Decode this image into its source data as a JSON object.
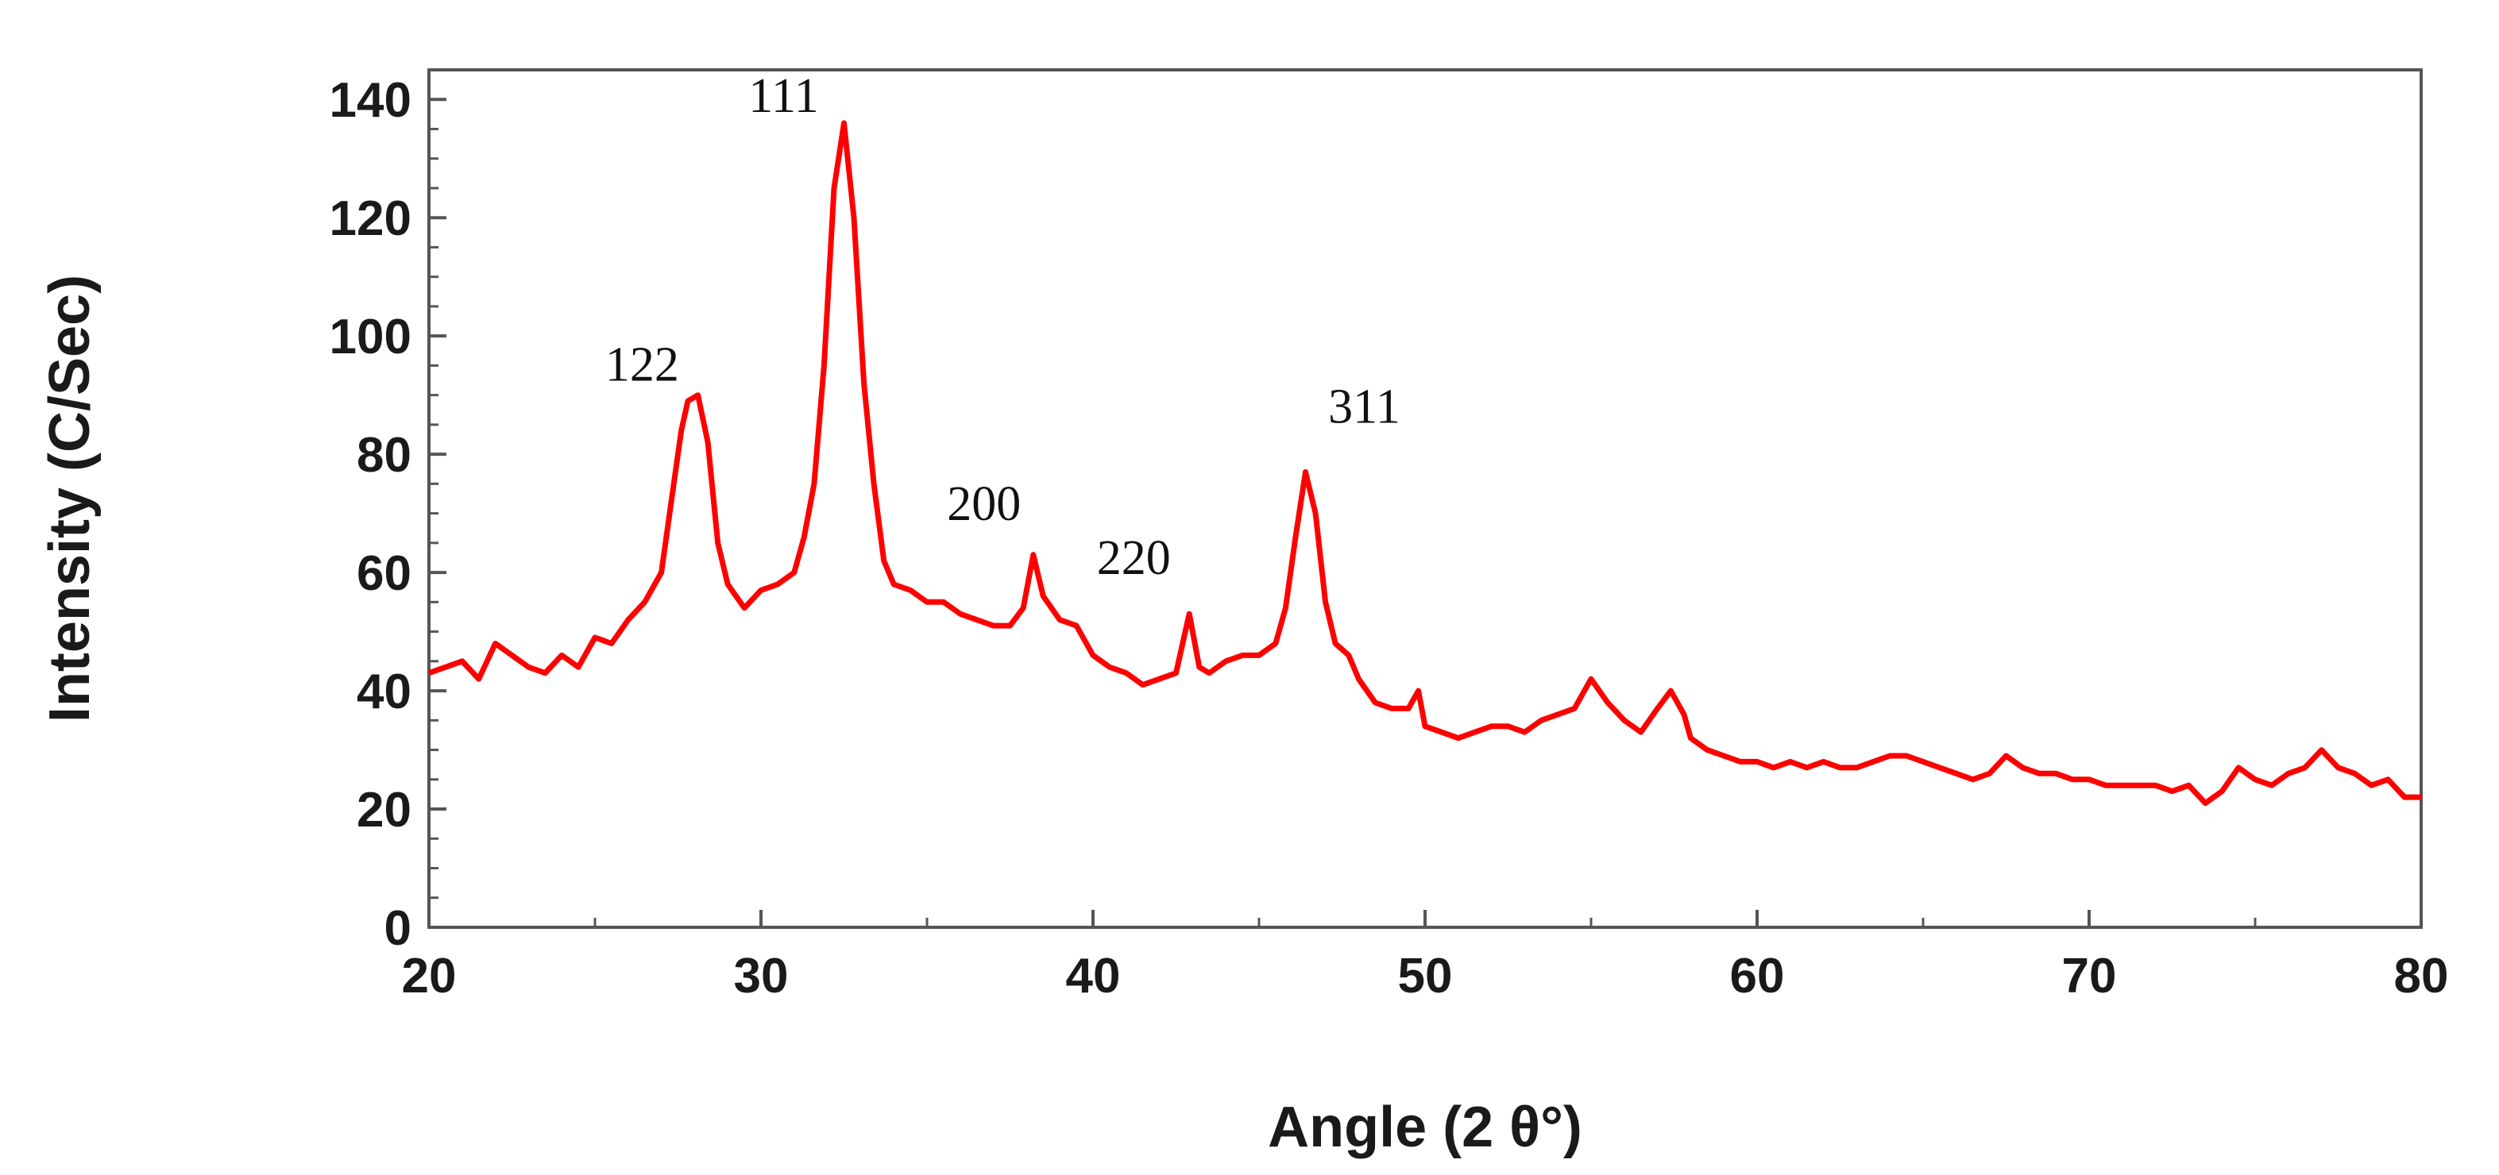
{
  "chart_data": {
    "type": "line",
    "xlabel": "Angle (2 θ°)",
    "ylabel": "Intensity (C/Sec)",
    "xlim": [
      20,
      80
    ],
    "ylim": [
      0,
      145
    ],
    "x_ticks": [
      "20",
      "30",
      "40",
      "50",
      "60",
      "70",
      "80"
    ],
    "y_ticks": [
      "0",
      "20",
      "40",
      "60",
      "80",
      "100",
      "120",
      "140"
    ],
    "grid": false,
    "legend": "none",
    "line_color": "#ff0000",
    "annotations": [
      {
        "text": "122",
        "x": 28.0,
        "y": 90
      },
      {
        "text": "111",
        "x": 32.5,
        "y": 136
      },
      {
        "text": "200",
        "x": 38.2,
        "y": 63
      },
      {
        "text": "220",
        "x": 42.9,
        "y": 53
      },
      {
        "text": "311",
        "x": 46.4,
        "y": 77
      }
    ],
    "series": [
      {
        "values": [
          [
            20.0,
            43
          ],
          [
            20.5,
            44
          ],
          [
            21.0,
            45
          ],
          [
            21.5,
            42
          ],
          [
            22.0,
            48
          ],
          [
            22.5,
            46
          ],
          [
            23.0,
            44
          ],
          [
            23.5,
            43
          ],
          [
            24.0,
            46
          ],
          [
            24.5,
            44
          ],
          [
            25.0,
            49
          ],
          [
            25.5,
            48
          ],
          [
            26.0,
            52
          ],
          [
            26.5,
            55
          ],
          [
            27.0,
            60
          ],
          [
            27.3,
            72
          ],
          [
            27.6,
            84
          ],
          [
            27.8,
            89
          ],
          [
            28.1,
            90
          ],
          [
            28.4,
            82
          ],
          [
            28.7,
            65
          ],
          [
            29.0,
            58
          ],
          [
            29.5,
            54
          ],
          [
            30.0,
            57
          ],
          [
            30.5,
            58
          ],
          [
            31.0,
            60
          ],
          [
            31.3,
            66
          ],
          [
            31.6,
            75
          ],
          [
            31.9,
            95
          ],
          [
            32.2,
            125
          ],
          [
            32.5,
            136
          ],
          [
            32.8,
            120
          ],
          [
            33.1,
            92
          ],
          [
            33.4,
            75
          ],
          [
            33.7,
            62
          ],
          [
            34.0,
            58
          ],
          [
            34.5,
            57
          ],
          [
            35.0,
            55
          ],
          [
            35.5,
            55
          ],
          [
            36.0,
            53
          ],
          [
            36.5,
            52
          ],
          [
            37.0,
            51
          ],
          [
            37.5,
            51
          ],
          [
            37.9,
            54
          ],
          [
            38.2,
            63
          ],
          [
            38.5,
            56
          ],
          [
            39.0,
            52
          ],
          [
            39.5,
            51
          ],
          [
            40.0,
            46
          ],
          [
            40.5,
            44
          ],
          [
            41.0,
            43
          ],
          [
            41.5,
            41
          ],
          [
            42.0,
            42
          ],
          [
            42.5,
            43
          ],
          [
            42.9,
            53
          ],
          [
            43.2,
            44
          ],
          [
            43.5,
            43
          ],
          [
            44.0,
            45
          ],
          [
            44.5,
            46
          ],
          [
            45.0,
            46
          ],
          [
            45.5,
            48
          ],
          [
            45.8,
            54
          ],
          [
            46.1,
            66
          ],
          [
            46.4,
            77
          ],
          [
            46.7,
            70
          ],
          [
            47.0,
            55
          ],
          [
            47.3,
            48
          ],
          [
            47.7,
            46
          ],
          [
            48.0,
            42
          ],
          [
            48.5,
            38
          ],
          [
            49.0,
            37
          ],
          [
            49.5,
            37
          ],
          [
            49.8,
            40
          ],
          [
            50.0,
            34
          ],
          [
            50.5,
            33
          ],
          [
            51.0,
            32
          ],
          [
            51.5,
            33
          ],
          [
            52.0,
            34
          ],
          [
            52.5,
            34
          ],
          [
            53.0,
            33
          ],
          [
            53.5,
            35
          ],
          [
            54.0,
            36
          ],
          [
            54.5,
            37
          ],
          [
            55.0,
            42
          ],
          [
            55.5,
            38
          ],
          [
            56.0,
            35
          ],
          [
            56.5,
            33
          ],
          [
            57.0,
            37
          ],
          [
            57.4,
            40
          ],
          [
            57.8,
            36
          ],
          [
            58.0,
            32
          ],
          [
            58.5,
            30
          ],
          [
            59.0,
            29
          ],
          [
            59.5,
            28
          ],
          [
            60.0,
            28
          ],
          [
            60.5,
            27
          ],
          [
            61.0,
            28
          ],
          [
            61.5,
            27
          ],
          [
            62.0,
            28
          ],
          [
            62.5,
            27
          ],
          [
            63.0,
            27
          ],
          [
            63.5,
            28
          ],
          [
            64.0,
            29
          ],
          [
            64.5,
            29
          ],
          [
            65.0,
            28
          ],
          [
            65.5,
            27
          ],
          [
            66.0,
            26
          ],
          [
            66.5,
            25
          ],
          [
            67.0,
            26
          ],
          [
            67.5,
            29
          ],
          [
            68.0,
            27
          ],
          [
            68.5,
            26
          ],
          [
            69.0,
            26
          ],
          [
            69.5,
            25
          ],
          [
            70.0,
            25
          ],
          [
            70.5,
            24
          ],
          [
            71.0,
            24
          ],
          [
            71.5,
            24
          ],
          [
            72.0,
            24
          ],
          [
            72.5,
            23
          ],
          [
            73.0,
            24
          ],
          [
            73.5,
            21
          ],
          [
            74.0,
            23
          ],
          [
            74.5,
            27
          ],
          [
            75.0,
            25
          ],
          [
            75.5,
            24
          ],
          [
            76.0,
            26
          ],
          [
            76.5,
            27
          ],
          [
            77.0,
            30
          ],
          [
            77.5,
            27
          ],
          [
            78.0,
            26
          ],
          [
            78.5,
            24
          ],
          [
            79.0,
            25
          ],
          [
            79.5,
            22
          ],
          [
            80.0,
            22
          ]
        ]
      }
    ]
  }
}
